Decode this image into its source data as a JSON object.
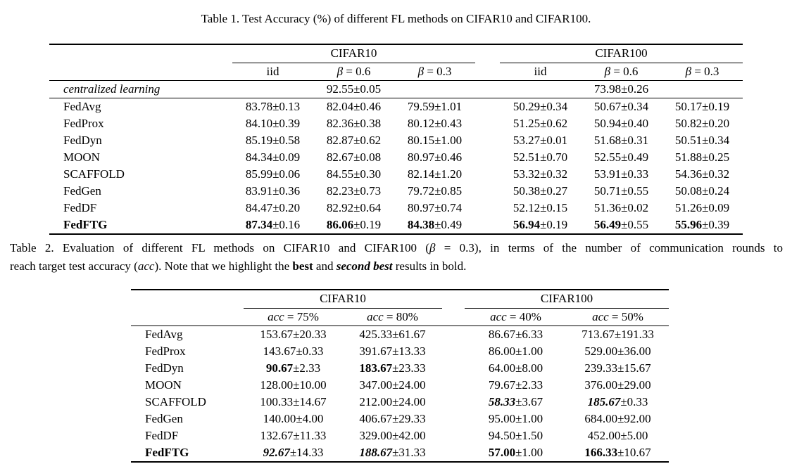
{
  "pm": "±",
  "table1": {
    "caption": "Table 1. Test Accuracy (%) of different FL methods on CIFAR10 and CIFAR100.",
    "groups": [
      "CIFAR10",
      "CIFAR100"
    ],
    "sub_headers": [
      {
        "it": "",
        "rm": "iid"
      },
      {
        "it": "β",
        "rm": " = 0.6"
      },
      {
        "it": "β",
        "rm": " = 0.3"
      },
      {
        "it": "",
        "rm": "iid"
      },
      {
        "it": "β",
        "rm": " = 0.6"
      },
      {
        "it": "β",
        "rm": " = 0.3"
      }
    ],
    "centralized": {
      "label": "centralized learning",
      "cifar10": {
        "m": "92.55",
        "s": "0.05"
      },
      "cifar100": {
        "m": "73.98",
        "s": "0.26"
      }
    },
    "rows": [
      {
        "method": "FedAvg",
        "b": false,
        "cells": [
          {
            "m": "83.78",
            "s": "0.13",
            "st": "n"
          },
          {
            "m": "82.04",
            "s": "0.46",
            "st": "n"
          },
          {
            "m": "79.59",
            "s": "1.01",
            "st": "n"
          },
          {
            "m": "50.29",
            "s": "0.34",
            "st": "n"
          },
          {
            "m": "50.67",
            "s": "0.34",
            "st": "n"
          },
          {
            "m": "50.17",
            "s": "0.19",
            "st": "n"
          }
        ]
      },
      {
        "method": "FedProx",
        "b": false,
        "cells": [
          {
            "m": "84.10",
            "s": "0.39",
            "st": "n"
          },
          {
            "m": "82.36",
            "s": "0.38",
            "st": "n"
          },
          {
            "m": "80.12",
            "s": "0.43",
            "st": "n"
          },
          {
            "m": "51.25",
            "s": "0.62",
            "st": "n"
          },
          {
            "m": "50.94",
            "s": "0.40",
            "st": "n"
          },
          {
            "m": "50.82",
            "s": "0.20",
            "st": "n"
          }
        ]
      },
      {
        "method": "FedDyn",
        "b": false,
        "cells": [
          {
            "m": "85.19",
            "s": "0.58",
            "st": "n"
          },
          {
            "m": "82.87",
            "s": "0.62",
            "st": "n"
          },
          {
            "m": "80.15",
            "s": "1.00",
            "st": "n"
          },
          {
            "m": "53.27",
            "s": "0.01",
            "st": "n"
          },
          {
            "m": "51.68",
            "s": "0.31",
            "st": "n"
          },
          {
            "m": "50.51",
            "s": "0.34",
            "st": "n"
          }
        ]
      },
      {
        "method": "MOON",
        "b": false,
        "cells": [
          {
            "m": "84.34",
            "s": "0.09",
            "st": "n"
          },
          {
            "m": "82.67",
            "s": "0.08",
            "st": "n"
          },
          {
            "m": "80.97",
            "s": "0.46",
            "st": "n"
          },
          {
            "m": "52.51",
            "s": "0.70",
            "st": "n"
          },
          {
            "m": "52.55",
            "s": "0.49",
            "st": "n"
          },
          {
            "m": "51.88",
            "s": "0.25",
            "st": "n"
          }
        ]
      },
      {
        "method": "SCAFFOLD",
        "b": false,
        "cells": [
          {
            "m": "85.99",
            "s": "0.06",
            "st": "n"
          },
          {
            "m": "84.55",
            "s": "0.30",
            "st": "n"
          },
          {
            "m": "82.14",
            "s": "1.20",
            "st": "n"
          },
          {
            "m": "53.32",
            "s": "0.32",
            "st": "n"
          },
          {
            "m": "53.91",
            "s": "0.33",
            "st": "n"
          },
          {
            "m": "54.36",
            "s": "0.32",
            "st": "n"
          }
        ]
      },
      {
        "method": "FedGen",
        "b": false,
        "cells": [
          {
            "m": "83.91",
            "s": "0.36",
            "st": "n"
          },
          {
            "m": "82.23",
            "s": "0.73",
            "st": "n"
          },
          {
            "m": "79.72",
            "s": "0.85",
            "st": "n"
          },
          {
            "m": "50.38",
            "s": "0.27",
            "st": "n"
          },
          {
            "m": "50.71",
            "s": "0.55",
            "st": "n"
          },
          {
            "m": "50.08",
            "s": "0.24",
            "st": "n"
          }
        ]
      },
      {
        "method": "FedDF",
        "b": false,
        "cells": [
          {
            "m": "84.47",
            "s": "0.20",
            "st": "n"
          },
          {
            "m": "82.92",
            "s": "0.64",
            "st": "n"
          },
          {
            "m": "80.97",
            "s": "0.74",
            "st": "n"
          },
          {
            "m": "52.12",
            "s": "0.15",
            "st": "n"
          },
          {
            "m": "51.36",
            "s": "0.02",
            "st": "n"
          },
          {
            "m": "51.26",
            "s": "0.09",
            "st": "n"
          }
        ]
      },
      {
        "method": "FedFTG",
        "b": true,
        "cells": [
          {
            "m": "87.34",
            "s": "0.16",
            "st": "b"
          },
          {
            "m": "86.06",
            "s": "0.19",
            "st": "b"
          },
          {
            "m": "84.38",
            "s": "0.49",
            "st": "b"
          },
          {
            "m": "56.94",
            "s": "0.19",
            "st": "b"
          },
          {
            "m": "56.49",
            "s": "0.55",
            "st": "b"
          },
          {
            "m": "55.96",
            "s": "0.39",
            "st": "b"
          }
        ]
      }
    ]
  },
  "table2": {
    "caption_lines": [
      [
        {
          "t": "Table 2. Evaluation of different FL methods on CIFAR10 and CIFAR100 (",
          "st": "n"
        },
        {
          "t": "β",
          "st": "i"
        },
        {
          "t": " = 0.3), in terms of the number of communication rounds to",
          "st": "n"
        }
      ],
      [
        {
          "t": "reach target test accuracy (",
          "st": "n"
        },
        {
          "t": "acc",
          "st": "i"
        },
        {
          "t": "). Note that we highlight the ",
          "st": "n"
        },
        {
          "t": "best",
          "st": "b"
        },
        {
          "t": " and ",
          "st": "n"
        },
        {
          "t": "second best",
          "st": "bi"
        },
        {
          "t": " results in bold.",
          "st": "n"
        }
      ]
    ],
    "groups": [
      "CIFAR10",
      "CIFAR100"
    ],
    "sub_headers": [
      {
        "it": "acc",
        "rm": " = 75%"
      },
      {
        "it": "acc",
        "rm": " = 80%"
      },
      {
        "it": "acc",
        "rm": " = 40%"
      },
      {
        "it": "acc",
        "rm": " = 50%"
      }
    ],
    "rows": [
      {
        "method": "FedAvg",
        "b": false,
        "cells": [
          {
            "m": "153.67",
            "s": "20.33",
            "st": "n"
          },
          {
            "m": "425.33",
            "s": "61.67",
            "st": "n"
          },
          {
            "m": "86.67",
            "s": "6.33",
            "st": "n"
          },
          {
            "m": "713.67",
            "s": "191.33",
            "st": "n"
          }
        ]
      },
      {
        "method": "FedProx",
        "b": false,
        "cells": [
          {
            "m": "143.67",
            "s": "0.33",
            "st": "n"
          },
          {
            "m": "391.67",
            "s": "13.33",
            "st": "n"
          },
          {
            "m": "86.00",
            "s": "1.00",
            "st": "n"
          },
          {
            "m": "529.00",
            "s": "36.00",
            "st": "n"
          }
        ]
      },
      {
        "method": "FedDyn",
        "b": false,
        "cells": [
          {
            "m": "90.67",
            "s": "2.33",
            "st": "b"
          },
          {
            "m": "183.67",
            "s": "23.33",
            "st": "b"
          },
          {
            "m": "64.00",
            "s": "8.00",
            "st": "n"
          },
          {
            "m": "239.33",
            "s": "15.67",
            "st": "n"
          }
        ]
      },
      {
        "method": "MOON",
        "b": false,
        "cells": [
          {
            "m": "128.00",
            "s": "10.00",
            "st": "n"
          },
          {
            "m": "347.00",
            "s": "24.00",
            "st": "n"
          },
          {
            "m": "79.67",
            "s": "2.33",
            "st": "n"
          },
          {
            "m": "376.00",
            "s": "29.00",
            "st": "n"
          }
        ]
      },
      {
        "method": "SCAFFOLD",
        "b": false,
        "cells": [
          {
            "m": "100.33",
            "s": "14.67",
            "st": "n"
          },
          {
            "m": "212.00",
            "s": "24.00",
            "st": "n"
          },
          {
            "m": "58.33",
            "s": "3.67",
            "st": "bi"
          },
          {
            "m": "185.67",
            "s": "0.33",
            "st": "bi"
          }
        ]
      },
      {
        "method": "FedGen",
        "b": false,
        "cells": [
          {
            "m": "140.00",
            "s": "4.00",
            "st": "n"
          },
          {
            "m": "406.67",
            "s": "29.33",
            "st": "n"
          },
          {
            "m": "95.00",
            "s": "1.00",
            "st": "n"
          },
          {
            "m": "684.00",
            "s": "92.00",
            "st": "n"
          }
        ]
      },
      {
        "method": "FedDF",
        "b": false,
        "cells": [
          {
            "m": "132.67",
            "s": "11.33",
            "st": "n"
          },
          {
            "m": "329.00",
            "s": "42.00",
            "st": "n"
          },
          {
            "m": "94.50",
            "s": "1.50",
            "st": "n"
          },
          {
            "m": "452.00",
            "s": "5.00",
            "st": "n"
          }
        ]
      },
      {
        "method": "FedFTG",
        "b": true,
        "cells": [
          {
            "m": "92.67",
            "s": "14.33",
            "st": "bi"
          },
          {
            "m": "188.67",
            "s": "31.33",
            "st": "bi"
          },
          {
            "m": "57.00",
            "s": "1.00",
            "st": "b"
          },
          {
            "m": "166.33",
            "s": "10.67",
            "st": "b"
          }
        ]
      }
    ]
  }
}
